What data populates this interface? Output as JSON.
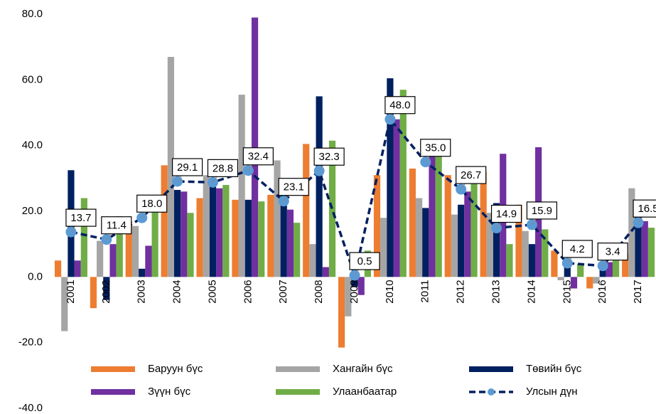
{
  "chart_data": {
    "type": "bar",
    "categories": [
      "2001",
      "2002",
      "2003",
      "2004",
      "2005",
      "2006",
      "2007",
      "2008",
      "2009",
      "2010",
      "2011",
      "2012",
      "2013",
      "2014",
      "2015",
      "2016",
      "2017"
    ],
    "series": [
      {
        "name": "Баруун бүс",
        "color": "#ed7d31",
        "values": [
          5,
          -9.5,
          17,
          34,
          24,
          23.5,
          25,
          40.5,
          -21.5,
          31,
          33,
          31,
          32,
          22,
          8,
          -3.5,
          7
        ]
      },
      {
        "name": "Хангайн бүс",
        "color": "#a5a5a5",
        "values": [
          -16.5,
          11,
          15.5,
          67,
          31,
          55.5,
          35.5,
          10,
          -12,
          18,
          24,
          19,
          19.5,
          14,
          -1,
          -2,
          27
        ]
      },
      {
        "name": "Төвийн бүс",
        "color": "#002060",
        "values": [
          32.5,
          -7,
          2.5,
          26.5,
          28.5,
          23.5,
          26.5,
          55,
          -3,
          60.5,
          21,
          22,
          22.5,
          10,
          4,
          3,
          19
        ]
      },
      {
        "name": "Зүүн бүс",
        "color": "#7030a0",
        "values": [
          5,
          10,
          9.5,
          26,
          27,
          79,
          20.5,
          3,
          -5.5,
          48,
          38.5,
          26,
          37.5,
          39.5,
          -3.5,
          4.5,
          17
        ]
      },
      {
        "name": "Улаанбаатар",
        "color": "#70ad47",
        "values": [
          24,
          18.5,
          22,
          19.5,
          28,
          23,
          16.5,
          41.5,
          8,
          57,
          40,
          29,
          10,
          14.5,
          4,
          5,
          15
        ]
      },
      {
        "name": "Улсын дүн",
        "color": "#002060",
        "marker_color": "#5b9bd5",
        "type": "line",
        "values": [
          13.7,
          11.4,
          18.0,
          29.1,
          28.8,
          32.4,
          23.1,
          32.3,
          0.5,
          48.0,
          35.0,
          26.7,
          14.9,
          15.9,
          4.2,
          3.4,
          16.5
        ],
        "value_labels": [
          "13.7",
          "11.4",
          "18.0",
          "29.1",
          "28.8",
          "32.4",
          "23.1",
          "32.3",
          "0.5",
          "48.0",
          "35.0",
          "26.7",
          "14.9",
          "15.9",
          "4.2",
          "3.4",
          "16.5"
        ]
      }
    ],
    "ylim": [
      -40,
      80
    ],
    "yticks": [
      {
        "value": -40,
        "label": "-40.0"
      },
      {
        "value": -20,
        "label": "-20.0"
      },
      {
        "value": 0,
        "label": "0.0"
      },
      {
        "value": 20,
        "label": "20.0"
      },
      {
        "value": 40,
        "label": "40.0"
      },
      {
        "value": 60,
        "label": "60.0"
      },
      {
        "value": 80,
        "label": "80.0"
      }
    ],
    "grid": false,
    "legend": "bottom"
  }
}
